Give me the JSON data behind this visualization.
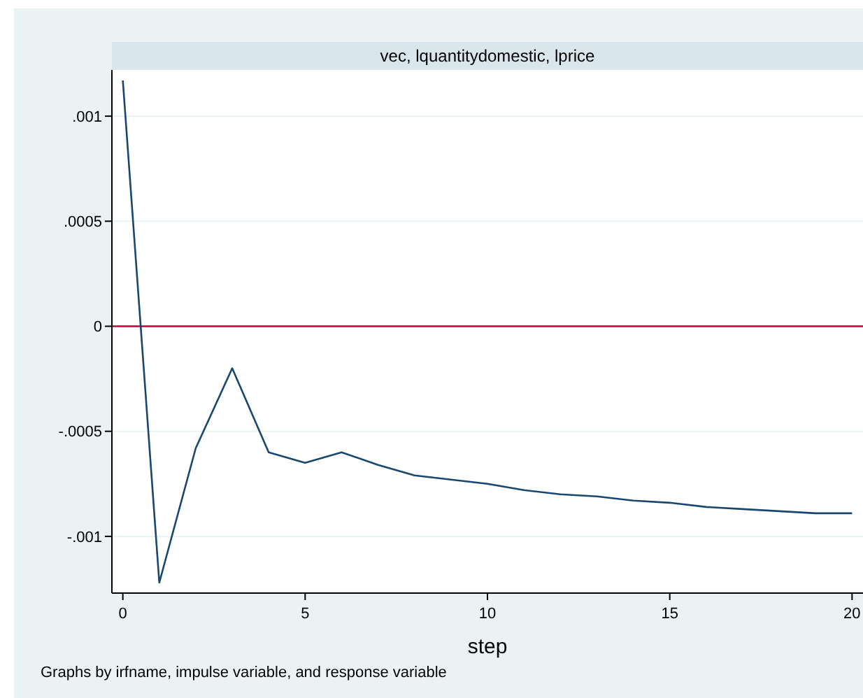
{
  "chart_data": {
    "type": "line",
    "title": "vec, lquantitydomestic, lprice",
    "xlabel": "step",
    "annotations": [
      "Graphs by irfname, impulse variable, and response variable"
    ],
    "x": [
      0,
      1,
      2,
      3,
      4,
      5,
      6,
      7,
      8,
      9,
      10,
      11,
      12,
      13,
      14,
      15,
      16,
      17,
      18,
      19,
      20
    ],
    "series": [
      {
        "color": "#1a476f",
        "values": [
          0.00117,
          -0.00122,
          -0.00058,
          -0.0002,
          -0.0006,
          -0.00065,
          -0.0006,
          -0.00066,
          -0.00071,
          -0.00073,
          -0.00075,
          -0.00078,
          -0.0008,
          -0.00081,
          -0.00083,
          -0.00084,
          -0.00086,
          -0.00087,
          -0.00088,
          -0.00089,
          -0.00089
        ]
      }
    ],
    "xlim": [
      -0.3,
      20.3
    ],
    "ylim": [
      -0.00127,
      0.00122
    ],
    "xticks": [
      0,
      5,
      10,
      15,
      20
    ],
    "yticks": [
      {
        "value": -0.001,
        "label": "-.001"
      },
      {
        "value": -0.0005,
        "label": "-.0005"
      },
      0,
      {
        "value": 0.0005,
        "label": ".0005"
      },
      {
        "value": 0.001,
        "label": ".001"
      }
    ],
    "ref_lines": [
      {
        "axis": "y",
        "value": 0,
        "color": "#c10534"
      }
    ],
    "grid": "y",
    "marker": "none",
    "line_style": "solid"
  }
}
